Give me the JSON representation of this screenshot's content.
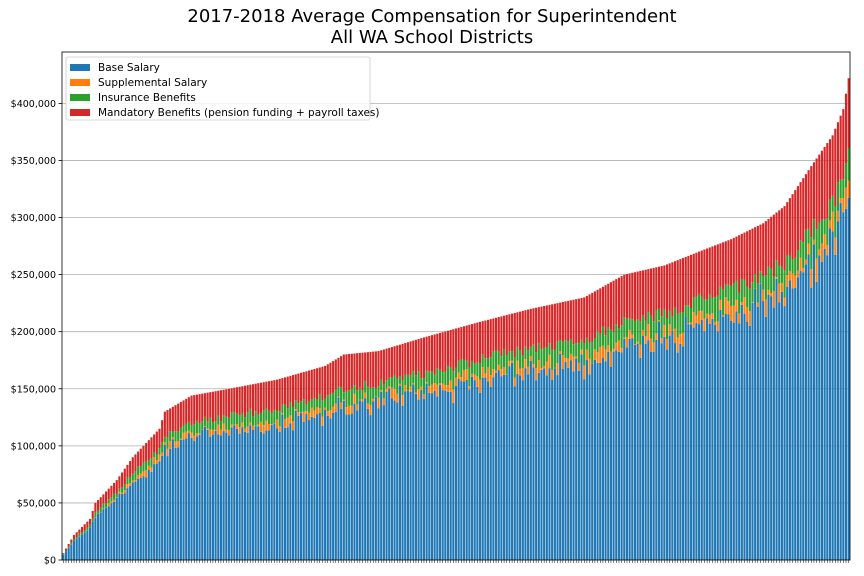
{
  "chart_data": {
    "type": "bar",
    "stacked": true,
    "title": [
      "2017-2018 Average Compensation for Superintendent",
      "All WA School Districts"
    ],
    "xlabel": "",
    "ylabel": "",
    "ylim": [
      0,
      445000
    ],
    "y_ticks": [
      "$0",
      "$50,000",
      "$100,000",
      "$150,000",
      "$200,000",
      "$250,000",
      "$300,000",
      "$350,000",
      "$400,000"
    ],
    "grid": "horizontal",
    "legend_position": "top-left",
    "x_categories_count": 295,
    "x_tick_labels_visible": false,
    "series": [
      {
        "name": "Base Salary",
        "color": "#1f77b4"
      },
      {
        "name": "Supplemental Salary",
        "color": "#ff7f0e"
      },
      {
        "name": "Insurance Benefits",
        "color": "#2ca02c"
      },
      {
        "name": "Mandatory Benefits (pension funding + payroll taxes)",
        "color": "#d62728"
      }
    ],
    "total_profile_sorted": [
      [
        0,
        6000
      ],
      [
        4,
        22000
      ],
      [
        10,
        36000
      ],
      [
        12,
        50000
      ],
      [
        20,
        70000
      ],
      [
        26,
        90000
      ],
      [
        30,
        100000
      ],
      [
        36,
        115000
      ],
      [
        38,
        130000
      ],
      [
        48,
        144000
      ],
      [
        62,
        150000
      ],
      [
        80,
        158000
      ],
      [
        98,
        170000
      ],
      [
        105,
        180000
      ],
      [
        118,
        183000
      ],
      [
        135,
        195000
      ],
      [
        155,
        208000
      ],
      [
        175,
        220000
      ],
      [
        195,
        230000
      ],
      [
        210,
        250000
      ],
      [
        225,
        258000
      ],
      [
        240,
        272000
      ],
      [
        250,
        281000
      ],
      [
        262,
        295000
      ],
      [
        270,
        310000
      ],
      [
        280,
        345000
      ],
      [
        288,
        372000
      ],
      [
        292,
        395000
      ],
      [
        294,
        422000
      ]
    ],
    "typical_shares": {
      "base": 0.76,
      "supplemental": 0.02,
      "insurance": 0.06,
      "mandatory": 0.16
    }
  }
}
